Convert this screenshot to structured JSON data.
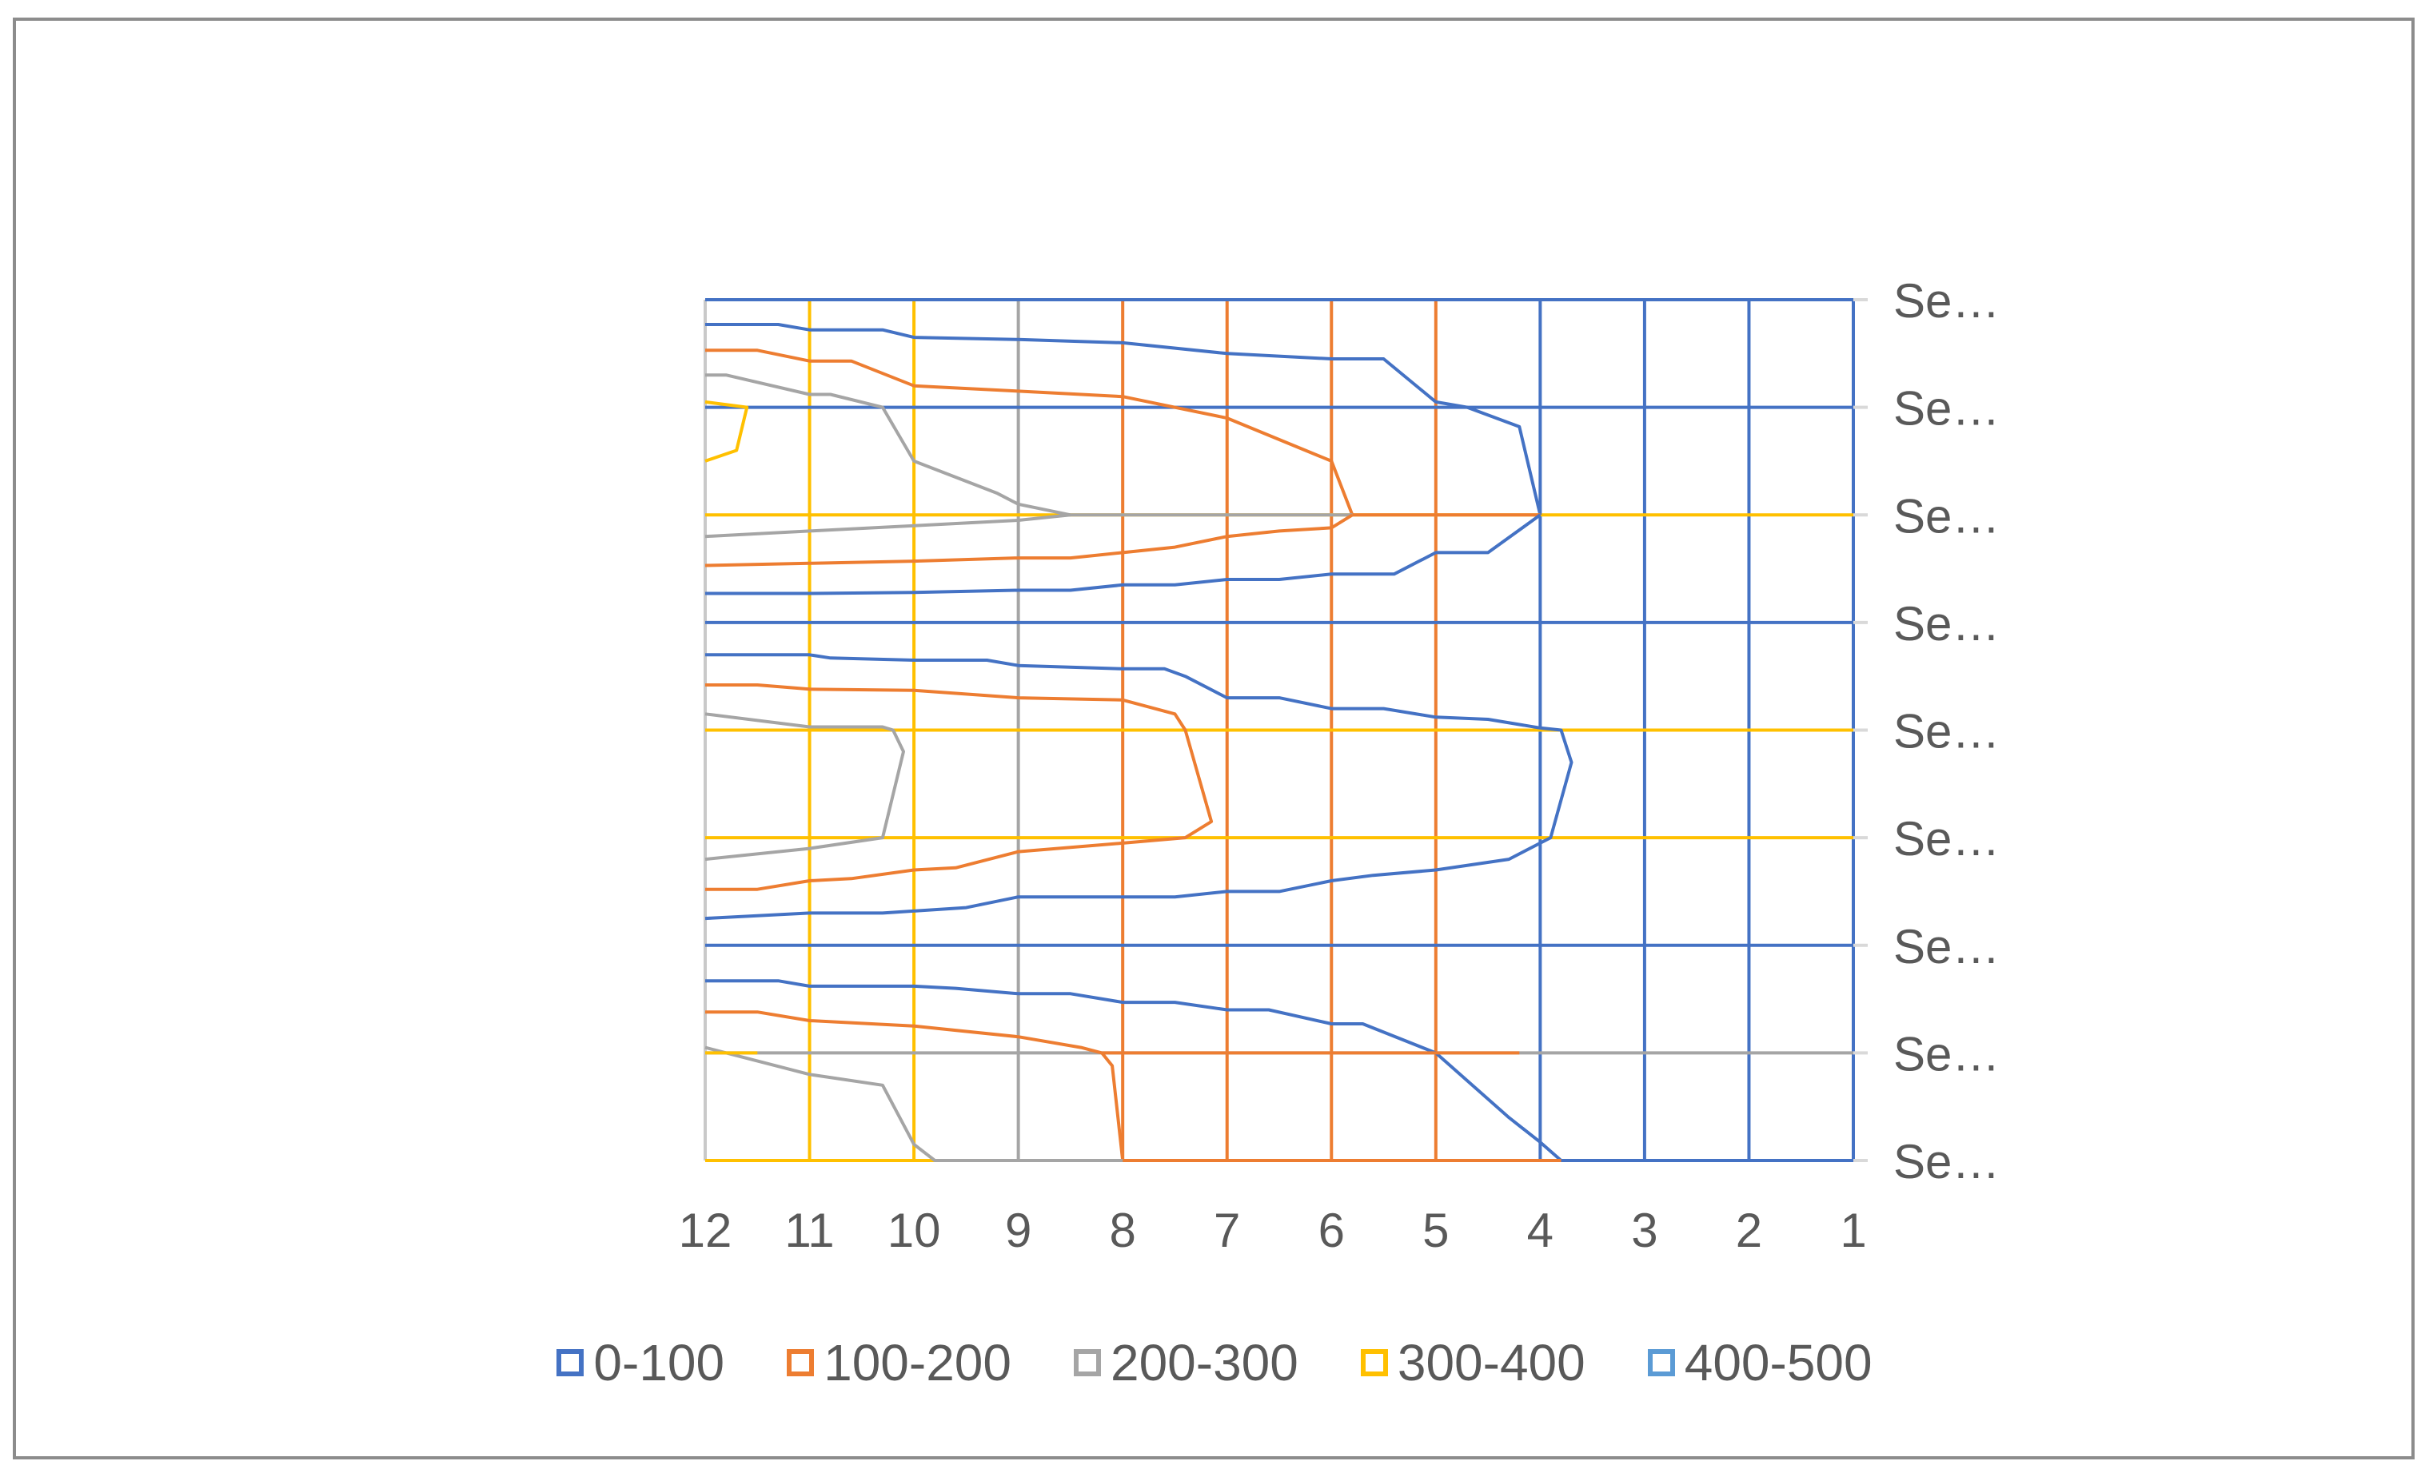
{
  "chart_data": {
    "type": "contour",
    "x_categories": [
      "12",
      "11",
      "10",
      "9",
      "8",
      "7",
      "6",
      "5",
      "4",
      "3",
      "2",
      "1"
    ],
    "y_categories": [
      "Se…",
      "Se…",
      "Se…",
      "Se…",
      "Se…",
      "Se…",
      "Se…",
      "Se…",
      "Se…"
    ],
    "legend_position": "bottom",
    "grid": true,
    "bands": [
      {
        "name": "0-100",
        "color": "#4472c4"
      },
      {
        "name": "100-200",
        "color": "#ed7d31"
      },
      {
        "name": "200-300",
        "color": "#a5a5a5"
      },
      {
        "name": "300-400",
        "color": "#ffc000"
      },
      {
        "name": "400-500",
        "color": "#5b9bd5"
      }
    ],
    "gridline_colors": {
      "vertical": [
        "#c9c9c9",
        "#ffc000",
        "#ffc000",
        "#a5a5a5",
        "#ed7d31",
        "#ed7d31",
        "#ed7d31",
        "#ed7d31",
        "#4472c4",
        "#4472c4",
        "#4472c4",
        "#4472c4"
      ],
      "horizontal": [
        "#4472c4",
        "#4472c4",
        "#ffc000",
        "#4472c4",
        "#ffc000",
        "#ffc000",
        "#4472c4",
        "#a5a5a5",
        "#ffc000"
      ]
    },
    "contours": [
      {
        "band": "0-100",
        "points": [
          [
            12,
            0.23
          ],
          [
            11.3,
            0.23
          ],
          [
            11,
            0.28
          ],
          [
            10.3,
            0.28
          ],
          [
            10,
            0.35
          ],
          [
            9,
            0.37
          ],
          [
            8,
            0.4
          ],
          [
            7,
            0.5
          ],
          [
            6,
            0.55
          ],
          [
            5.5,
            0.55
          ],
          [
            5,
            0.95
          ],
          [
            4.7,
            1.0
          ],
          [
            4.2,
            1.18
          ],
          [
            4,
            2.0
          ]
        ]
      },
      {
        "band": "100-200",
        "points": [
          [
            12,
            0.47
          ],
          [
            11.5,
            0.47
          ],
          [
            11,
            0.57
          ],
          [
            10.6,
            0.57
          ],
          [
            10,
            0.8
          ],
          [
            9,
            0.85
          ],
          [
            8,
            0.9
          ],
          [
            7,
            1.1
          ],
          [
            6,
            1.5
          ],
          [
            5.8,
            2.0
          ],
          [
            4,
            2.0
          ]
        ]
      },
      {
        "band": "200-300",
        "points": [
          [
            12,
            0.7
          ],
          [
            11.8,
            0.7
          ],
          [
            11,
            0.88
          ],
          [
            10.8,
            0.88
          ],
          [
            10.3,
            1.0
          ],
          [
            10,
            1.5
          ],
          [
            9.2,
            1.8
          ],
          [
            9,
            1.9
          ],
          [
            8.5,
            2.0
          ],
          [
            5.8,
            2.0
          ]
        ]
      },
      {
        "band": "300-400",
        "points": [
          [
            12,
            0.95
          ],
          [
            11.6,
            1.0
          ],
          [
            11.7,
            1.4
          ],
          [
            12,
            1.5
          ]
        ]
      },
      {
        "band": "0-100",
        "points": [
          [
            4,
            2.0
          ],
          [
            4.5,
            2.35
          ],
          [
            5,
            2.35
          ],
          [
            5.4,
            2.55
          ],
          [
            6,
            2.55
          ],
          [
            6.5,
            2.6
          ],
          [
            7,
            2.6
          ],
          [
            7.5,
            2.65
          ],
          [
            8,
            2.65
          ],
          [
            8.5,
            2.7
          ],
          [
            9,
            2.7
          ],
          [
            10,
            2.72
          ],
          [
            11,
            2.73
          ],
          [
            12,
            2.73
          ]
        ]
      },
      {
        "band": "100-200",
        "points": [
          [
            5.8,
            2.0
          ],
          [
            6,
            2.12
          ],
          [
            6.5,
            2.15
          ],
          [
            7,
            2.2
          ],
          [
            7.5,
            2.3
          ],
          [
            8,
            2.35
          ],
          [
            8.5,
            2.4
          ],
          [
            9,
            2.4
          ],
          [
            10,
            2.43
          ],
          [
            11,
            2.45
          ],
          [
            12,
            2.47
          ]
        ]
      },
      {
        "band": "200-300",
        "points": [
          [
            8.5,
            2.0
          ],
          [
            9,
            2.05
          ],
          [
            10,
            2.1
          ],
          [
            11,
            2.15
          ],
          [
            12,
            2.2
          ]
        ]
      },
      {
        "band": "0-100",
        "points": [
          [
            12,
            3.3
          ],
          [
            11,
            3.3
          ],
          [
            10.8,
            3.33
          ],
          [
            10,
            3.35
          ],
          [
            9.3,
            3.35
          ],
          [
            9,
            3.4
          ],
          [
            8,
            3.43
          ],
          [
            7.6,
            3.43
          ],
          [
            7.4,
            3.5
          ],
          [
            7,
            3.7
          ],
          [
            6.5,
            3.7
          ],
          [
            6,
            3.8
          ],
          [
            5.5,
            3.8
          ],
          [
            5,
            3.88
          ],
          [
            4.5,
            3.9
          ],
          [
            4,
            3.98
          ],
          [
            3.8,
            4.0
          ],
          [
            3.7,
            4.3
          ],
          [
            3.9,
            5.0
          ],
          [
            4.3,
            5.2
          ],
          [
            5,
            5.3
          ],
          [
            5.6,
            5.35
          ],
          [
            6,
            5.4
          ],
          [
            6.5,
            5.5
          ],
          [
            7,
            5.5
          ],
          [
            7.5,
            5.55
          ],
          [
            8,
            5.55
          ],
          [
            9,
            5.55
          ],
          [
            9.5,
            5.65
          ],
          [
            10.3,
            5.7
          ],
          [
            11,
            5.7
          ],
          [
            12,
            5.75
          ]
        ]
      },
      {
        "band": "100-200",
        "points": [
          [
            12,
            3.58
          ],
          [
            11.5,
            3.58
          ],
          [
            11,
            3.62
          ],
          [
            10,
            3.63
          ],
          [
            9,
            3.7
          ],
          [
            8,
            3.72
          ],
          [
            7.5,
            3.85
          ],
          [
            7.4,
            4.0
          ],
          [
            7.15,
            4.85
          ],
          [
            7.4,
            5.0
          ],
          [
            8,
            5.05
          ],
          [
            9,
            5.13
          ],
          [
            9.6,
            5.28
          ],
          [
            10,
            5.3
          ],
          [
            10.6,
            5.38
          ],
          [
            11,
            5.4
          ],
          [
            11.5,
            5.48
          ],
          [
            12,
            5.48
          ]
        ]
      },
      {
        "band": "200-300",
        "points": [
          [
            12,
            3.85
          ],
          [
            11,
            3.97
          ],
          [
            10.3,
            3.97
          ],
          [
            10.2,
            4.0
          ],
          [
            10.1,
            4.2
          ],
          [
            10.3,
            5.0
          ],
          [
            11,
            5.1
          ],
          [
            12,
            5.2
          ]
        ]
      },
      {
        "band": "0-100",
        "points": [
          [
            12,
            6.33
          ],
          [
            11.3,
            6.33
          ],
          [
            11,
            6.38
          ],
          [
            10,
            6.38
          ],
          [
            9.6,
            6.4
          ],
          [
            9,
            6.45
          ],
          [
            8.5,
            6.45
          ],
          [
            8,
            6.53
          ],
          [
            7.5,
            6.53
          ],
          [
            7,
            6.6
          ],
          [
            6.6,
            6.6
          ],
          [
            6,
            6.73
          ],
          [
            5.7,
            6.73
          ],
          [
            5,
            7.0
          ],
          [
            4.3,
            7.6
          ],
          [
            4,
            7.83
          ],
          [
            3.8,
            8.0
          ],
          [
            1,
            8.0
          ]
        ]
      },
      {
        "band": "100-200",
        "points": [
          [
            12,
            6.62
          ],
          [
            11.5,
            6.62
          ],
          [
            11,
            6.7
          ],
          [
            10,
            6.75
          ],
          [
            9,
            6.85
          ],
          [
            8.4,
            6.95
          ],
          [
            8.2,
            7.0
          ],
          [
            5,
            7.0
          ],
          [
            4.2,
            7.0
          ]
        ]
      },
      {
        "band": "100-200",
        "points": [
          [
            8.2,
            7.0
          ],
          [
            8.1,
            7.12
          ],
          [
            8,
            8.0
          ],
          [
            3.8,
            8.0
          ]
        ]
      },
      {
        "band": "200-300",
        "points": [
          [
            12,
            6.95
          ],
          [
            11,
            7.2
          ],
          [
            10.3,
            7.3
          ],
          [
            10,
            7.85
          ],
          [
            9.8,
            8.0
          ],
          [
            8,
            8.0
          ]
        ]
      },
      {
        "band": "300-400",
        "points": [
          [
            12,
            7.0
          ],
          [
            11.5,
            7.0
          ]
        ]
      }
    ]
  }
}
